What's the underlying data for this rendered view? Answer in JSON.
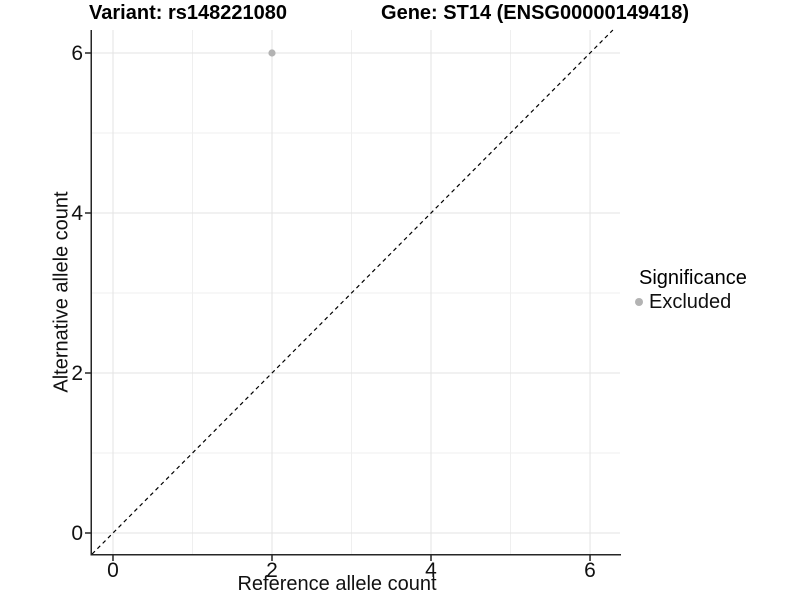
{
  "chart_data": {
    "type": "scatter",
    "titles": {
      "left": "Variant: rs148221080",
      "right": "Gene: ST14 (ENSG00000149418)"
    },
    "xlabel": "Reference allele count",
    "ylabel": "Alternative allele count",
    "x_ticks": [
      0,
      2,
      4,
      6
    ],
    "y_ticks": [
      0,
      2,
      4,
      6
    ],
    "x_minor_ticks": [
      1,
      3,
      5
    ],
    "y_minor_ticks": [
      1,
      3,
      5
    ],
    "xlim": [
      -0.264,
      6.377
    ],
    "ylim": [
      -0.2625,
      6.2875
    ],
    "grid": true,
    "points": [
      {
        "x": 2,
        "y": 6,
        "series": "Excluded"
      }
    ],
    "reference_line": {
      "type": "identity",
      "slope": 1,
      "intercept": 0,
      "style": "dashed"
    },
    "legend": {
      "title": "Significance",
      "position": "right",
      "entries": [
        {
          "label": "Excluded",
          "color": "#b3b3b3"
        }
      ]
    },
    "colors": {
      "point": "#b3b3b3",
      "grid_major": "#e3e3e3",
      "grid_minor": "#efefef",
      "axis_line": "#262626",
      "reference_line": "#000000",
      "background": "#ffffff"
    }
  }
}
